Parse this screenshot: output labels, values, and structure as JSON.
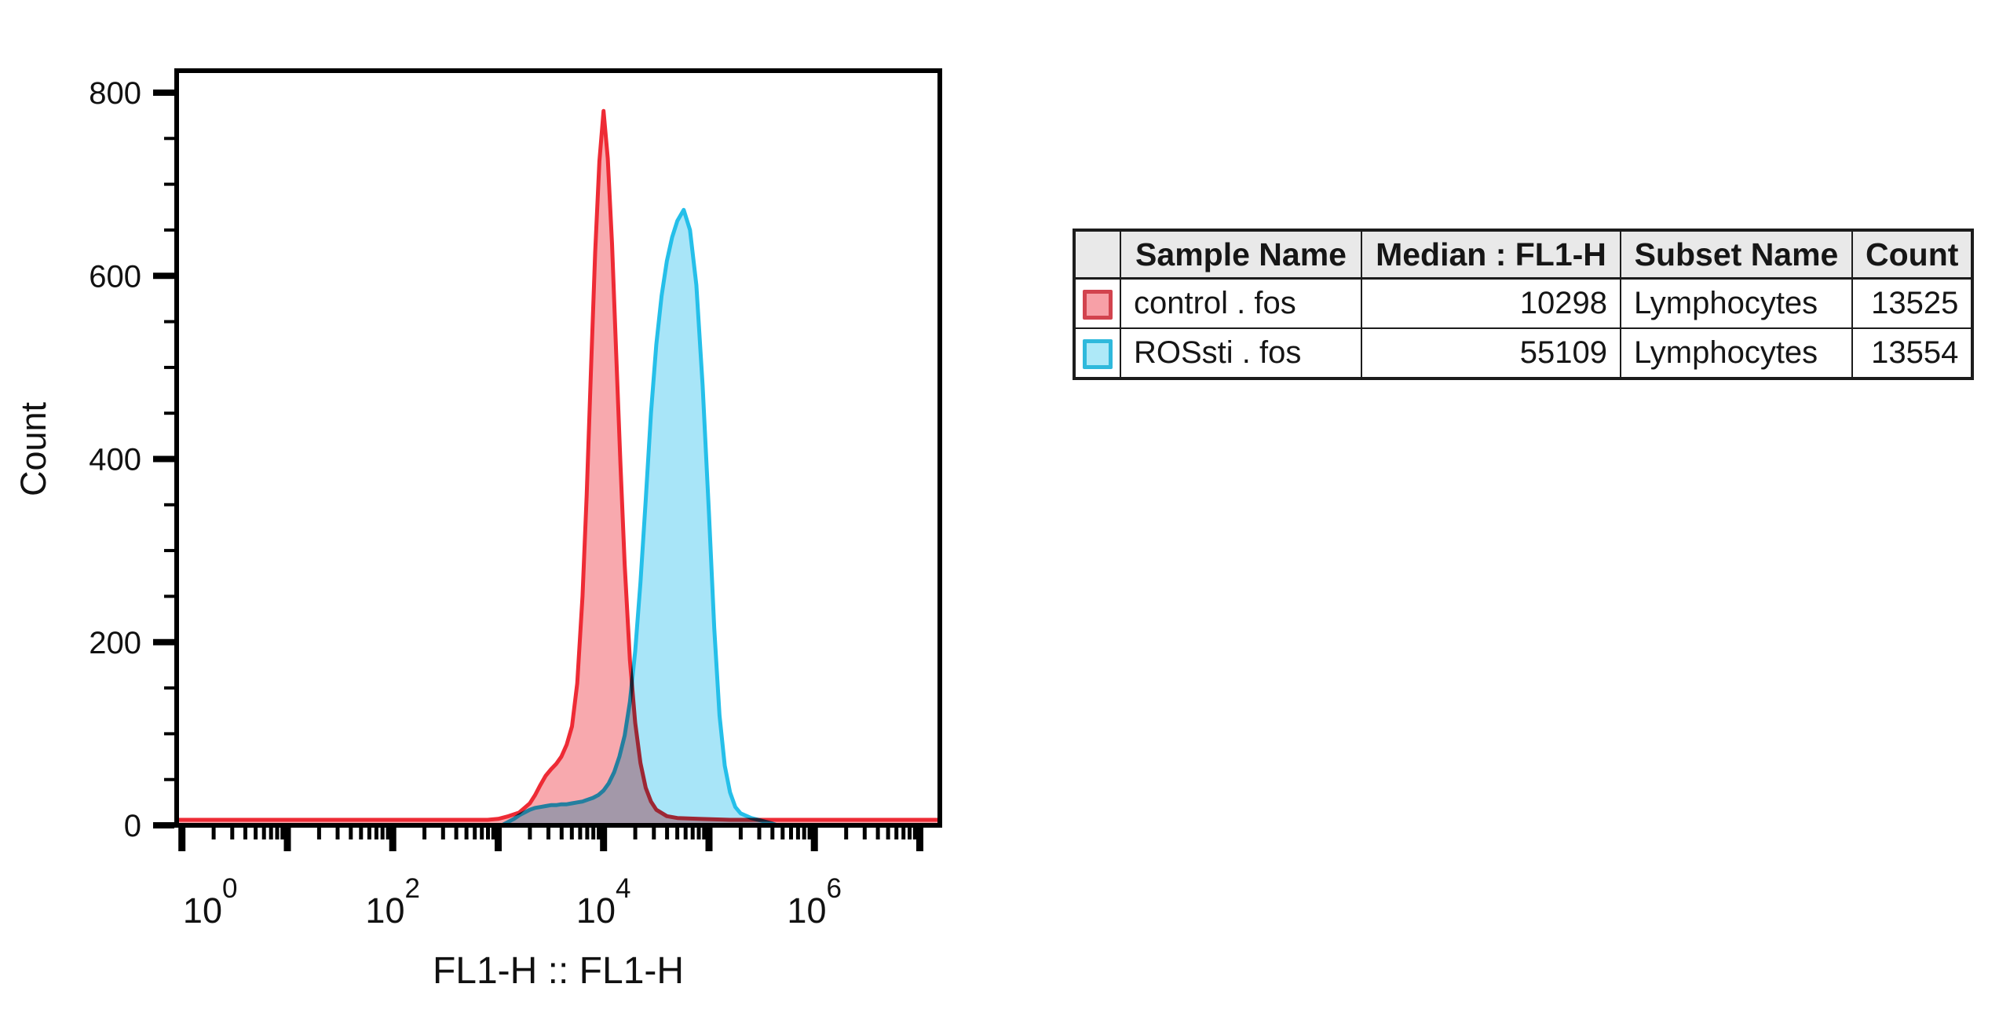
{
  "figure": {
    "background": "#ffffff",
    "plot_border_color": "#000000"
  },
  "chart_data": {
    "type": "area",
    "subtype": "flow-cytometry-histogram-overlay",
    "title": "",
    "xlabel": "FL1-H :: FL1-H",
    "ylabel": "Count",
    "x_scale": "log10",
    "x_log_range": [
      -0.05,
      7.19
    ],
    "x_decades": [
      0,
      1,
      2,
      3,
      4,
      5,
      6,
      7
    ],
    "x_labeled_decades": [
      0,
      2,
      4,
      6
    ],
    "x_minor_mantissas": [
      2,
      3,
      4,
      5,
      6,
      7,
      8,
      9
    ],
    "ylim": [
      0,
      800
    ],
    "y_major_ticks": [
      0,
      200,
      400,
      600,
      800
    ],
    "y_minor_step": 50,
    "grid": false,
    "legend_position": "table-right",
    "series": [
      {
        "name": "control . fos",
        "stroke": "#ee2b35",
        "fill": "rgba(242, 90, 99, 0.52)",
        "peak_log_x": 4.0,
        "peak_count": 780,
        "points": [
          [
            -0.05,
            6
          ],
          [
            0.5,
            6
          ],
          [
            1.0,
            6
          ],
          [
            1.5,
            6
          ],
          [
            2.0,
            6
          ],
          [
            2.5,
            6
          ],
          [
            2.9,
            6
          ],
          [
            3.0,
            7
          ],
          [
            3.1,
            10
          ],
          [
            3.2,
            14
          ],
          [
            3.3,
            24
          ],
          [
            3.35,
            33
          ],
          [
            3.4,
            44
          ],
          [
            3.45,
            54
          ],
          [
            3.5,
            61
          ],
          [
            3.55,
            67
          ],
          [
            3.6,
            75
          ],
          [
            3.65,
            88
          ],
          [
            3.7,
            108
          ],
          [
            3.75,
            155
          ],
          [
            3.8,
            250
          ],
          [
            3.84,
            360
          ],
          [
            3.88,
            495
          ],
          [
            3.92,
            625
          ],
          [
            3.96,
            725
          ],
          [
            4.0,
            780
          ],
          [
            4.04,
            728
          ],
          [
            4.08,
            635
          ],
          [
            4.12,
            515
          ],
          [
            4.16,
            395
          ],
          [
            4.2,
            285
          ],
          [
            4.25,
            180
          ],
          [
            4.3,
            112
          ],
          [
            4.35,
            68
          ],
          [
            4.4,
            41
          ],
          [
            4.45,
            26
          ],
          [
            4.5,
            17
          ],
          [
            4.6,
            10
          ],
          [
            4.7,
            8
          ],
          [
            4.9,
            7
          ],
          [
            5.2,
            6
          ],
          [
            5.8,
            6
          ],
          [
            6.4,
            6
          ],
          [
            7.0,
            6
          ],
          [
            7.19,
            6
          ]
        ]
      },
      {
        "name": "ROSsti . fos",
        "stroke": "#25bfe9",
        "fill": "rgba(96, 208, 243, 0.55)",
        "peak_log_x": 4.76,
        "peak_count": 672,
        "points": [
          [
            3.05,
            1
          ],
          [
            3.1,
            4
          ],
          [
            3.15,
            7
          ],
          [
            3.2,
            11
          ],
          [
            3.25,
            14
          ],
          [
            3.3,
            17
          ],
          [
            3.35,
            19
          ],
          [
            3.4,
            20
          ],
          [
            3.45,
            21
          ],
          [
            3.5,
            22
          ],
          [
            3.55,
            22
          ],
          [
            3.6,
            23
          ],
          [
            3.65,
            23
          ],
          [
            3.7,
            24
          ],
          [
            3.75,
            25
          ],
          [
            3.8,
            26
          ],
          [
            3.85,
            28
          ],
          [
            3.9,
            30
          ],
          [
            3.95,
            33
          ],
          [
            4.0,
            38
          ],
          [
            4.05,
            46
          ],
          [
            4.1,
            58
          ],
          [
            4.15,
            75
          ],
          [
            4.2,
            98
          ],
          [
            4.25,
            135
          ],
          [
            4.3,
            190
          ],
          [
            4.35,
            265
          ],
          [
            4.4,
            355
          ],
          [
            4.45,
            450
          ],
          [
            4.5,
            525
          ],
          [
            4.55,
            578
          ],
          [
            4.6,
            616
          ],
          [
            4.65,
            642
          ],
          [
            4.7,
            660
          ],
          [
            4.76,
            672
          ],
          [
            4.82,
            650
          ],
          [
            4.88,
            590
          ],
          [
            4.94,
            480
          ],
          [
            5.0,
            340
          ],
          [
            5.05,
            215
          ],
          [
            5.1,
            120
          ],
          [
            5.15,
            65
          ],
          [
            5.2,
            36
          ],
          [
            5.25,
            20
          ],
          [
            5.3,
            13
          ],
          [
            5.4,
            8
          ],
          [
            5.5,
            5
          ],
          [
            5.6,
            2
          ],
          [
            5.65,
            0
          ]
        ]
      }
    ]
  },
  "table": {
    "headers": [
      "",
      "Sample Name",
      "Median : FL1-H",
      "Subset Name",
      "Count"
    ],
    "rows": [
      {
        "swatch_fill": "#f7a0a7",
        "swatch_border": "#d2434e",
        "sample": "control . fos",
        "median": "10298",
        "subset": "Lymphocytes",
        "count": "13525"
      },
      {
        "swatch_fill": "#aee9f8",
        "swatch_border": "#2fb9dc",
        "sample": "ROSsti . fos",
        "median": "55109",
        "subset": "Lymphocytes",
        "count": "13554"
      }
    ]
  }
}
